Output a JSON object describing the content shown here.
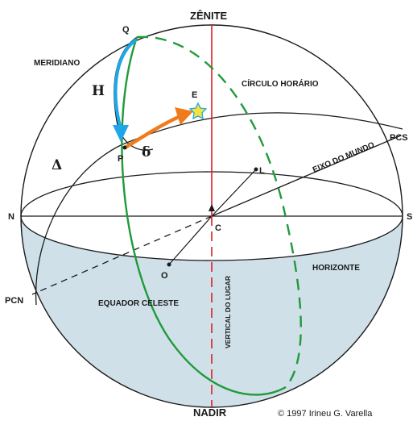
{
  "labels": {
    "zenite": "ZÊNITE",
    "nadir": "NADIR",
    "q": "Q",
    "e": "E",
    "p": "P",
    "l": "L",
    "c": "C",
    "o": "O",
    "n": "N",
    "s": "S",
    "pcs": "PCS",
    "pcn": "PCN",
    "meridiano": "MERIDIANO",
    "circulo_horario": "CÍRCULO HORÁRIO",
    "eixo_do_mundo": "EIXO DO MUNDO",
    "horizonte": "HORIZONTE",
    "equador_celeste": "EQUADOR CELESTE",
    "vertical_do_lugar": "VERTICAL DO LUGAR",
    "hour_angle": "H",
    "declination": "δ",
    "delta_big": "Δ",
    "copyright": "© 1997 Irineu G. Varella"
  },
  "colors": {
    "sphere_outline": "#1a1a1a",
    "below_horizon_fill": "#cfe0e8",
    "vertical_line": "#e01b24",
    "equator": "#1f9a3a",
    "hour_angle_arrow": "#1ea7e8",
    "declination_arrow": "#f07b1a",
    "star": "#f5e23a",
    "star_outline": "#1ea7e8"
  }
}
